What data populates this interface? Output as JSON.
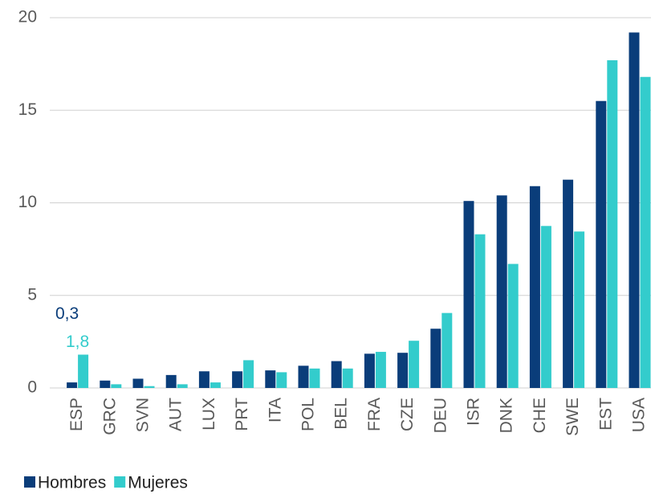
{
  "chart_data": {
    "type": "bar",
    "categories": [
      "ESP",
      "GRC",
      "SVN",
      "AUT",
      "LUX",
      "PRT",
      "ITA",
      "POL",
      "BEL",
      "FRA",
      "CZE",
      "DEU",
      "ISR",
      "DNK",
      "CHE",
      "SWE",
      "EST",
      "USA"
    ],
    "series": [
      {
        "name": "Hombres",
        "color": "#0a3d7a",
        "values": [
          0.3,
          0.4,
          0.5,
          0.7,
          0.9,
          0.9,
          0.95,
          1.2,
          1.45,
          1.85,
          1.9,
          3.2,
          10.1,
          10.4,
          10.9,
          11.25,
          15.5,
          19.2
        ],
        "value_labels": [
          "0,3",
          null,
          null,
          null,
          null,
          null,
          null,
          null,
          null,
          null,
          null,
          null,
          null,
          null,
          null,
          null,
          null,
          null
        ]
      },
      {
        "name": "Mujeres",
        "color": "#33cccc",
        "values": [
          1.8,
          0.2,
          0.1,
          0.2,
          0.3,
          1.5,
          0.85,
          1.05,
          1.05,
          1.95,
          2.55,
          4.05,
          8.3,
          6.7,
          8.75,
          8.45,
          17.7,
          16.8
        ],
        "value_labels": [
          "1,8",
          null,
          null,
          null,
          null,
          null,
          null,
          null,
          null,
          null,
          null,
          null,
          null,
          null,
          null,
          null,
          null,
          null
        ]
      }
    ],
    "ylim": [
      0,
      20
    ],
    "yticks": [
      0,
      5,
      10,
      15,
      20
    ],
    "grid": true,
    "legend": "bottom-left"
  }
}
